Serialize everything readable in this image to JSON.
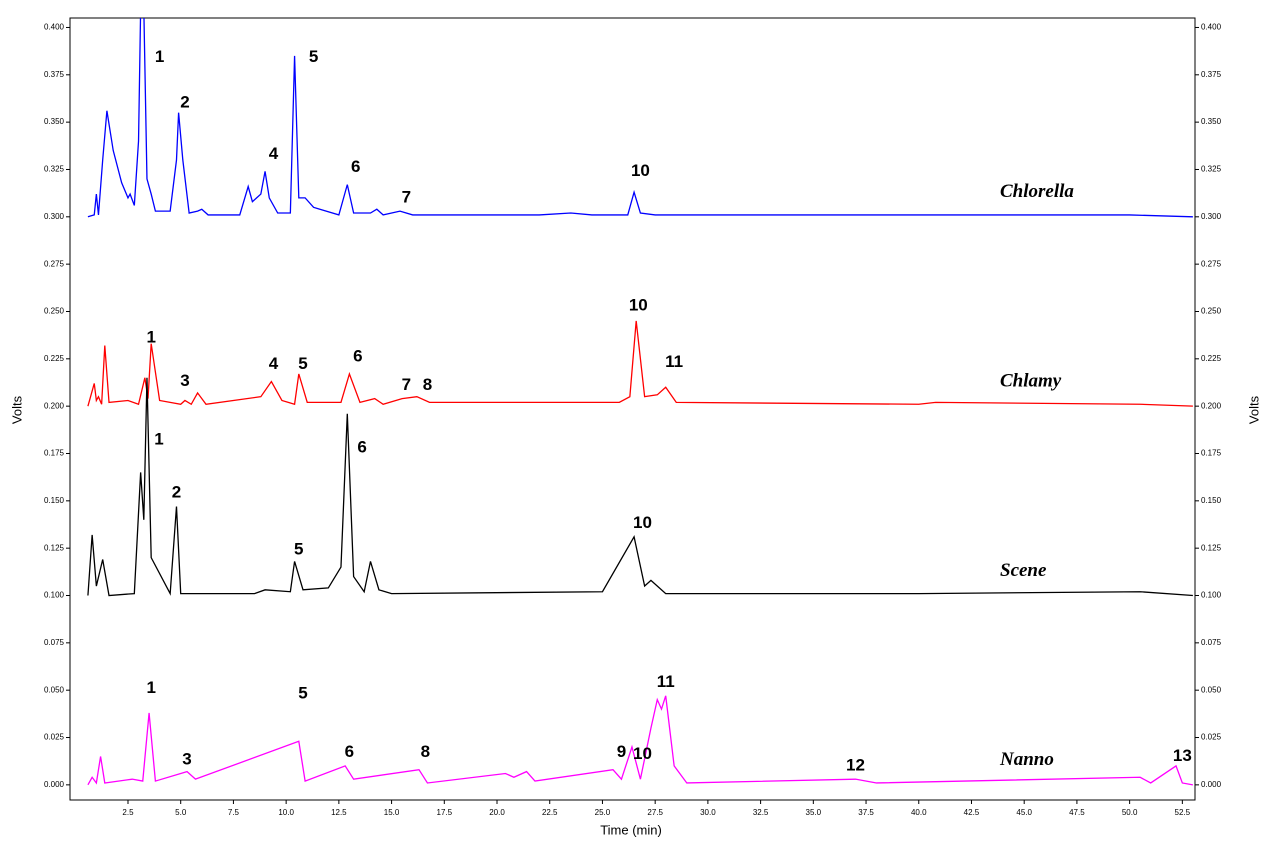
{
  "chart_data": {
    "type": "line",
    "x_label": "Time (min)",
    "y_label": "Volts",
    "xlim": [
      -0.25,
      53.1
    ],
    "ylim": [
      -0.008,
      0.405
    ],
    "xticks": [
      2.5,
      {
        "value": 5,
        "label": "5.0"
      },
      7.5,
      {
        "value": 10,
        "label": "10.0"
      },
      12.5,
      {
        "value": 15,
        "label": "15.0"
      },
      17.5,
      {
        "value": 20,
        "label": "20.0"
      },
      22.5,
      {
        "value": 25,
        "label": "25.0"
      },
      27.5,
      {
        "value": 30,
        "label": "30.0"
      },
      32.5,
      {
        "value": 35,
        "label": "35.0"
      },
      37.5,
      {
        "value": 40,
        "label": "40.0"
      },
      42.5,
      {
        "value": 45,
        "label": "45.0"
      },
      47.5,
      {
        "value": 50,
        "label": "50.0"
      },
      52.5
    ],
    "yticks": [
      {
        "value": 0,
        "label": "0.000"
      },
      {
        "value": 0.025,
        "label": "0.025"
      },
      {
        "value": 0.05,
        "label": "0.050"
      },
      {
        "value": 0.075,
        "label": "0.075"
      },
      {
        "value": 0.1,
        "label": "0.100"
      },
      {
        "value": 0.125,
        "label": "0.125"
      },
      {
        "value": 0.15,
        "label": "0.150"
      },
      {
        "value": 0.175,
        "label": "0.175"
      },
      {
        "value": 0.2,
        "label": "0.200"
      },
      {
        "value": 0.225,
        "label": "0.225"
      },
      {
        "value": 0.25,
        "label": "0.250"
      },
      {
        "value": 0.275,
        "label": "0.275"
      },
      {
        "value": 0.3,
        "label": "0.300"
      },
      {
        "value": 0.325,
        "label": "0.325"
      },
      {
        "value": 0.35,
        "label": "0.350"
      },
      {
        "value": 0.375,
        "label": "0.375"
      },
      {
        "value": 0.4,
        "label": "0.400"
      }
    ],
    "series": [
      {
        "name": "Chlorella",
        "color": "#0000ff",
        "x": [
          0.6,
          0.9,
          1.0,
          1.1,
          1.3,
          1.5,
          1.8,
          2.2,
          2.5,
          2.6,
          2.8,
          3.0,
          3.1,
          3.25,
          3.4,
          3.6,
          3.8,
          4.5,
          4.8,
          4.9,
          5.1,
          5.4,
          5.8,
          6.0,
          6.3,
          7.8,
          8.2,
          8.4,
          8.6,
          8.8,
          9.0,
          9.2,
          9.6,
          10.2,
          10.4,
          10.6,
          10.9,
          11.3,
          11.6,
          12.5,
          12.9,
          13.2,
          14.0,
          14.3,
          14.6,
          15.4,
          16,
          22,
          23.5,
          24.5,
          26.2,
          26.5,
          26.8,
          27.5,
          30,
          40,
          50,
          53
        ],
        "values": [
          0.3,
          0.301,
          0.312,
          0.301,
          0.33,
          0.356,
          0.335,
          0.318,
          0.31,
          0.312,
          0.306,
          0.34,
          0.41,
          0.41,
          0.32,
          0.312,
          0.303,
          0.303,
          0.33,
          0.355,
          0.33,
          0.302,
          0.303,
          0.304,
          0.301,
          0.301,
          0.316,
          0.308,
          0.31,
          0.312,
          0.324,
          0.31,
          0.302,
          0.302,
          0.385,
          0.31,
          0.31,
          0.305,
          0.304,
          0.301,
          0.317,
          0.302,
          0.302,
          0.304,
          0.301,
          0.303,
          0.301,
          0.301,
          0.302,
          0.301,
          0.301,
          0.313,
          0.302,
          0.301,
          0.301,
          0.301,
          0.301,
          0.3
        ],
        "annotations": [
          {
            "text": "1",
            "x": 4.0,
            "y": 0.384
          },
          {
            "text": "2",
            "x": 5.2,
            "y": 0.36
          },
          {
            "text": "4",
            "x": 9.4,
            "y": 0.333
          },
          {
            "text": "5",
            "x": 11.3,
            "y": 0.384
          },
          {
            "text": "6",
            "x": 13.3,
            "y": 0.326
          },
          {
            "text": "7",
            "x": 15.7,
            "y": 0.31
          },
          {
            "text": "10",
            "x": 26.8,
            "y": 0.324
          }
        ]
      },
      {
        "name": "Chlamy",
        "color": "#ff0000",
        "x": [
          0.6,
          0.9,
          1.0,
          1.1,
          1.25,
          1.4,
          1.6,
          2.5,
          3.0,
          3.3,
          3.45,
          3.6,
          4.0,
          5.0,
          5.2,
          5.5,
          5.8,
          6.2,
          8.8,
          9.3,
          9.8,
          10.4,
          10.6,
          11.0,
          12.6,
          13.0,
          13.5,
          14.2,
          14.6,
          15.5,
          16.2,
          16.8,
          24,
          25.8,
          26.3,
          26.6,
          27.0,
          27.6,
          28.0,
          28.5,
          40,
          40.8,
          50.5,
          53
        ],
        "values": [
          0.2,
          0.212,
          0.203,
          0.205,
          0.201,
          0.232,
          0.202,
          0.203,
          0.201,
          0.215,
          0.204,
          0.233,
          0.203,
          0.201,
          0.203,
          0.201,
          0.207,
          0.201,
          0.205,
          0.213,
          0.203,
          0.201,
          0.217,
          0.202,
          0.202,
          0.217,
          0.202,
          0.204,
          0.201,
          0.204,
          0.205,
          0.202,
          0.202,
          0.202,
          0.205,
          0.245,
          0.205,
          0.206,
          0.21,
          0.202,
          0.201,
          0.202,
          0.201,
          0.2
        ],
        "annotations": [
          {
            "text": "1",
            "x": 3.6,
            "y": 0.236
          },
          {
            "text": "3",
            "x": 5.2,
            "y": 0.213
          },
          {
            "text": "4",
            "x": 9.4,
            "y": 0.222
          },
          {
            "text": "5",
            "x": 10.8,
            "y": 0.222
          },
          {
            "text": "6",
            "x": 13.4,
            "y": 0.226
          },
          {
            "text": "7",
            "x": 15.7,
            "y": 0.211
          },
          {
            "text": "8",
            "x": 16.7,
            "y": 0.211
          },
          {
            "text": "10",
            "x": 26.7,
            "y": 0.253
          },
          {
            "text": "11",
            "x": 28.4,
            "y": 0.223
          }
        ]
      },
      {
        "name": "Scene",
        "color": "#000000",
        "x": [
          0.6,
          0.8,
          1.0,
          1.3,
          1.6,
          2.8,
          3.1,
          3.25,
          3.4,
          3.6,
          4.5,
          4.8,
          5.0,
          8.5,
          9.0,
          10.2,
          10.4,
          10.8,
          12.0,
          12.6,
          12.9,
          13.2,
          13.7,
          14.0,
          14.4,
          15.0,
          25,
          26.5,
          27.0,
          27.3,
          28,
          40,
          50.5,
          53
        ],
        "values": [
          0.1,
          0.132,
          0.105,
          0.119,
          0.1,
          0.101,
          0.165,
          0.14,
          0.215,
          0.12,
          0.101,
          0.147,
          0.101,
          0.101,
          0.103,
          0.102,
          0.118,
          0.103,
          0.104,
          0.115,
          0.196,
          0.11,
          0.102,
          0.118,
          0.103,
          0.101,
          0.102,
          0.131,
          0.105,
          0.108,
          0.101,
          0.101,
          0.102,
          0.1
        ],
        "annotations": [
          {
            "text": "1",
            "x": 3.97,
            "y": 0.182
          },
          {
            "text": "2",
            "x": 4.8,
            "y": 0.154
          },
          {
            "text": "5",
            "x": 10.6,
            "y": 0.124
          },
          {
            "text": "6",
            "x": 13.6,
            "y": 0.178
          },
          {
            "text": "10",
            "x": 26.9,
            "y": 0.138
          }
        ]
      },
      {
        "name": "Nanno",
        "color": "#ff00ff",
        "x": [
          0.6,
          0.8,
          1.0,
          1.2,
          1.4,
          2.7,
          3.2,
          3.5,
          3.8,
          5.3,
          5.7,
          10.6,
          10.9,
          12.8,
          13.2,
          16.3,
          16.7,
          20.4,
          20.8,
          21.4,
          21.8,
          25.5,
          25.9,
          26.4,
          26.8,
          27.3,
          27.6,
          27.8,
          28.0,
          28.4,
          29,
          37,
          38,
          50.5,
          51,
          52.2,
          52.5,
          53
        ],
        "values": [
          0.0,
          0.004,
          0.001,
          0.015,
          0.001,
          0.003,
          0.002,
          0.038,
          0.002,
          0.007,
          0.003,
          0.023,
          0.002,
          0.01,
          0.003,
          0.008,
          0.001,
          0.006,
          0.004,
          0.007,
          0.002,
          0.008,
          0.003,
          0.02,
          0.003,
          0.03,
          0.045,
          0.04,
          0.047,
          0.01,
          0.001,
          0.003,
          0.001,
          0.004,
          0.001,
          0.01,
          0.001,
          0.0
        ],
        "annotations": [
          {
            "text": "1",
            "x": 3.6,
            "y": 0.051
          },
          {
            "text": "3",
            "x": 5.3,
            "y": 0.013
          },
          {
            "text": "5",
            "x": 10.8,
            "y": 0.048
          },
          {
            "text": "6",
            "x": 13.0,
            "y": 0.017
          },
          {
            "text": "8",
            "x": 16.6,
            "y": 0.017
          },
          {
            "text": "9",
            "x": 25.9,
            "y": 0.017
          },
          {
            "text": "10",
            "x": 26.9,
            "y": 0.016
          },
          {
            "text": "11",
            "x": 28.0,
            "y": 0.054
          },
          {
            "text": "12",
            "x": 37.0,
            "y": 0.01
          },
          {
            "text": "13",
            "x": 52.5,
            "y": 0.015
          }
        ]
      }
    ]
  }
}
